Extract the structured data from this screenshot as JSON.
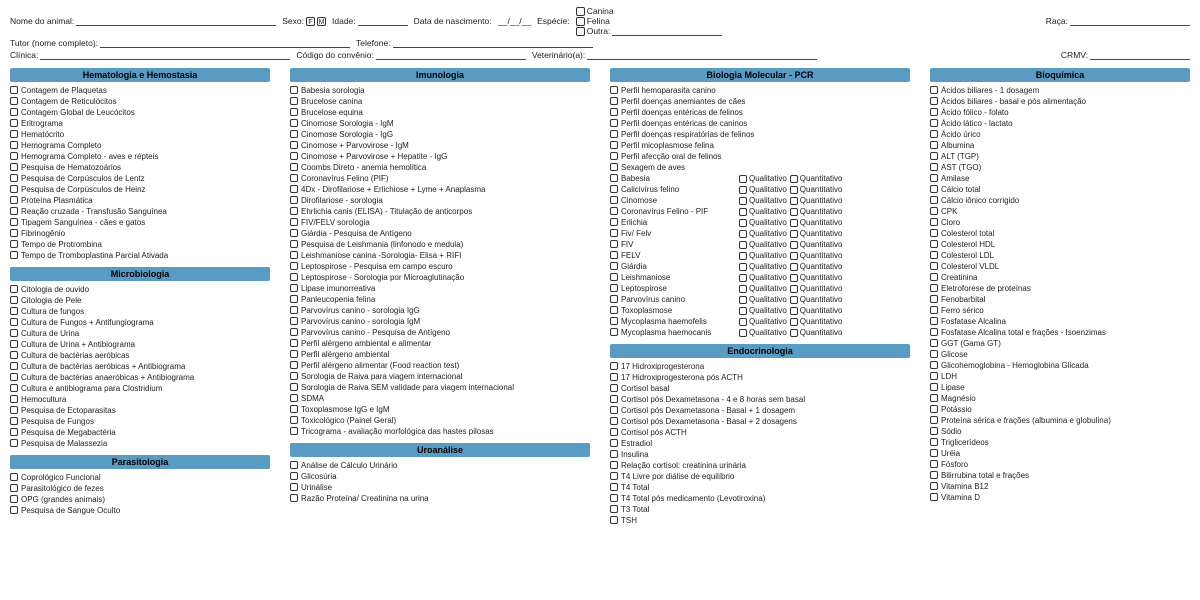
{
  "colors": {
    "header_bg": "#5A9BC4",
    "text": "#222",
    "border": "#444"
  },
  "header": {
    "animal_name": "Nome do animal:",
    "sexo": "Sexo:",
    "sexo_f": "F",
    "sexo_m": "M",
    "idade": "Idade:",
    "nascimento": "Data de nascimento:",
    "nasc_sep": "__/__/__",
    "especie": "Espécie:",
    "canina": "Canina",
    "felina": "Felina",
    "outra": "Outra:",
    "raca": "Raça:",
    "tutor": "Tutor (nome completo):",
    "telefone": "Telefone:",
    "clinica": "Clínica:",
    "codigo": "Código do convênio:",
    "veterinario": "Veterinário(a):",
    "crmv": "CRMV:"
  },
  "sections": {
    "hematologia": {
      "title": "Hematologia e Hemostasia",
      "items": [
        "Contagem de Plaquetas",
        "Contagem de Reticulócitos",
        "Contagem Global de Leucócitos",
        "Eritrograma",
        "Hematócrito",
        "Hemograma Completo",
        "Hemograma Completo - aves e répteis",
        "Pesquisa de Hematozoários",
        "Pesquisa de Corpúsculos de Lentz",
        "Pesquisa de Corpúsculos de Heinz",
        "Proteína Plasmática",
        "Reação cruzada - Transfusão Sanguínea",
        "Tipagem Sanguínea - cães e gatos",
        "Fibrinogênio",
        "Tempo de Protrombina",
        "Tempo de Tromboplastina Parcial Ativada"
      ]
    },
    "microbiologia": {
      "title": "Microbiologia",
      "items": [
        "Citologia de ouvido",
        "Citologia de Pele",
        "Cultura de fungos",
        "Cultura de Fungos + Antifungiograma",
        "Cultura de Urina",
        "Cultura de Urina + Antibiograma",
        "Cultura de bactérias aeróbicas",
        "Cultura de bactérias aeróbicas + Antibiograma",
        "Cultura de bactérias anaeróbicas + Antibiograma",
        "Cultura e antibiograma para Clostridium",
        "Hemocultura",
        "Pesquisa de Ectoparasitas",
        "Pesquisa de Fungos",
        "Pesquisa de Megabactéria",
        "Pesquisa de Malassezia"
      ]
    },
    "parasitologia": {
      "title": "Parasitologia",
      "items": [
        "Coprológico Funcional",
        "Parasitológico de fezes",
        "OPG (grandes animais)",
        "Pesquisa de Sangue Oculto"
      ]
    },
    "imunologia": {
      "title": "Imunologia",
      "items": [
        "Babesia sorologia",
        "Brucelose canina",
        "Brucelose equina",
        "Cinomose Sorologia - IgM",
        "Cinomose Sorologia - IgG",
        "Cinomose + Parvovirose - IgM",
        "Cinomose + Parvovirose + Hepatite - IgG",
        "Coombs Direto - anemia hemolítica",
        "Coronavírus Felino (PIF)",
        "4Dx - Dirofilariose + Erlichiose + Lyme + Anaplasma",
        "Dirofilariose - sorologia",
        "Ehrlichia canis (ELISA) - Titulação de anticorpos",
        "FIV/FELV sorologia",
        "Giárdia - Pesquisa de Antígeno",
        "Pesquisa de Leishmania (linfonodo e medula)",
        "Leishmaniose canina -Sorologia- Elisa + RIFI",
        "Leptospirose - Pesquisa em campo escuro",
        "Leptospirose - Sorologia por Microaglutinação",
        "Lipase imunorreativa",
        "Panleucopenia felina",
        "Parvovírus canino - sorologia IgG",
        "Parvovírus canino - sorologia IgM",
        "Parvovírus canino - Pesquisa de Antígeno",
        "Perfil alérgeno ambiental e alimentar",
        "Perfil alérgeno ambiental",
        "Perfil alérgeno alimentar (Food reaction test)",
        "Sorologia de Raiva para viagem internacional",
        "Sorologia de Raiva SEM validade para viagem internacional",
        "SDMA",
        "Toxoplasmose IgG e IgM",
        "Toxicológico (Painel Geral)",
        "Tricograma - avaliação morfológica das hastes pilosas"
      ]
    },
    "uroanalise": {
      "title": "Uroanálise",
      "items": [
        "Análise de Cálculo Urinário",
        "Glicosúria",
        "Urinálise",
        "Razão Proteína/ Creatinina na urina"
      ]
    },
    "pcr": {
      "title": "Biologia Molecular - PCR",
      "plain_items": [
        "Perfil hemoparasita canino",
        "Perfil doenças anemiantes de cães",
        "Perfil doenças entéricas de felinos",
        "Perfil doenças entéricas de caninos",
        "Perfil doenças respiratórias de felinos",
        "Perfil micoplasmose felina",
        "Perfil afecção oral de felinos",
        "Sexagem de aves"
      ],
      "qq_labels": {
        "qual": "Qualitativo",
        "quant": "Quantitativo"
      },
      "qq_items": [
        "Babesia",
        "Calicivírus felino",
        "Cinomose",
        "Coronavírus Felino - PIF",
        "Erlichia",
        "Fiv/ Felv",
        "FIV",
        "FELV",
        "Giárdia",
        "Leishmaniose",
        "Leptospirose",
        "Parvovírus canino",
        "Toxoplasmose",
        "Mycoplasma haemofelis",
        "Mycoplasma haemocanis"
      ]
    },
    "endocrinologia": {
      "title": "Endocrinologia",
      "items": [
        "17 Hidroxiprogesterona",
        "17 Hidroxiprogesterona pós ACTH",
        "Cortisol basal",
        "Cortisol pós Dexametasona - 4 e 8 horas sem basal",
        "Cortisol pós Dexametasona - Basal + 1 dosagem",
        "Cortisol pós Dexametasona - Basal + 2 dosagens",
        "Cortisol pós ACTH",
        "Estradiol",
        "Insulina",
        "Relação cortisol: creatinina urinária",
        "T4 Livre por diálise de equilíbrio",
        "T4 Total",
        "T4 Total pós medicamento (Levotiroxina)",
        "T3 Total",
        "TSH"
      ]
    },
    "bioquimica": {
      "title": "Bioquímica",
      "items": [
        "Ácidos biliares - 1 dosagem",
        "Ácidos biliares - basal e pós alimentação",
        "Ácido fólico - folato",
        "Ácido lático - lactato",
        "Ácido úrico",
        "Albumina",
        "ALT (TGP)",
        "AST (TGO)",
        "Amilase",
        "Cálcio total",
        "Cálcio iônico corrigido",
        "CPK",
        "Cloro",
        "Colesterol total",
        "Colesterol HDL",
        "Colesterol LDL",
        "Colesterol VLDL",
        "Creatinina",
        "Eletroforese de proteínas",
        "Fenobarbital",
        "Ferro sérico",
        "Fosfatase Alcalina",
        "Fosfatase Alcalina total e frações - Isoenzimas",
        "GGT (Gama GT)",
        "Glicose",
        "Glicohemoglobina - Hemoglobina Glicada",
        "LDH",
        "Lipase",
        "Magnésio",
        "Potássio",
        "Proteína sérica e frações (albumina e globulina)",
        "Sódio",
        "Triglicerídeos",
        "Uréia",
        "Fósforo",
        "Bilirrubina total e frações",
        "Vitamina B12",
        "Vitamina D"
      ]
    }
  }
}
